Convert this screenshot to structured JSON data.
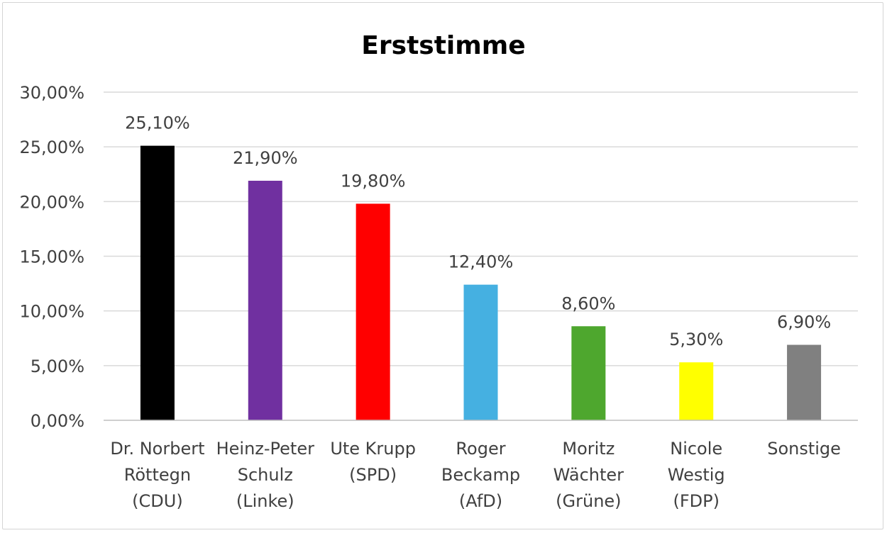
{
  "chart_data": {
    "type": "bar",
    "title": "Erststimme",
    "xlabel": "",
    "ylabel": "",
    "ylim": [
      0,
      30
    ],
    "yticks": [
      0,
      5,
      10,
      15,
      20,
      25,
      30
    ],
    "ytick_labels": [
      "0,00%",
      "5,00%",
      "10,00%",
      "15,00%",
      "20,00%",
      "25,00%",
      "30,00%"
    ],
    "grid": true,
    "legend": "none",
    "categories": [
      [
        "Dr. Norbert",
        "Röttegn",
        "(CDU)"
      ],
      [
        "Heinz-Peter",
        "Schulz",
        "(Linke)"
      ],
      [
        "Ute Krupp",
        "(SPD)"
      ],
      [
        "Roger",
        "Beckamp",
        "(AfD)"
      ],
      [
        "Moritz",
        "Wächter",
        "(Grüne)"
      ],
      [
        "Nicole",
        "Westig",
        "(FDP)"
      ],
      [
        "Sonstige"
      ]
    ],
    "values": [
      25.1,
      21.9,
      19.8,
      12.4,
      8.6,
      5.3,
      6.9
    ],
    "value_labels": [
      "25,10%",
      "21,90%",
      "19,80%",
      "12,40%",
      "8,60%",
      "5,30%",
      "6,90%"
    ],
    "colors": [
      "#000000",
      "#7030a0",
      "#ff0000",
      "#45b0e1",
      "#4ea72e",
      "#ffff00",
      "#808080"
    ],
    "gridline_color": "#d9d9d9",
    "axis_color": "#bfbfbf"
  }
}
